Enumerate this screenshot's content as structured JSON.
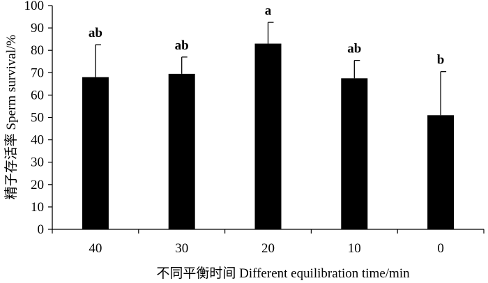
{
  "chart_data": {
    "type": "bar",
    "xlabel": "不同平衡时间 Different equilibration time/min",
    "ylabel": "精子存活率 Sperm survival/%",
    "categories": [
      "40",
      "30",
      "20",
      "10",
      "0"
    ],
    "series": [
      {
        "values": [
          68,
          69.5,
          83,
          67.5,
          51
        ],
        "error": [
          14.5,
          7.5,
          9.5,
          8,
          19.5
        ],
        "labels": [
          "ab",
          "ab",
          "a",
          "ab",
          "b"
        ]
      }
    ],
    "ylim": [
      0,
      100
    ],
    "yticks": [
      0,
      10,
      20,
      30,
      40,
      50,
      60,
      70,
      80,
      90,
      100
    ],
    "grid": false,
    "bar_color": "#000000"
  }
}
